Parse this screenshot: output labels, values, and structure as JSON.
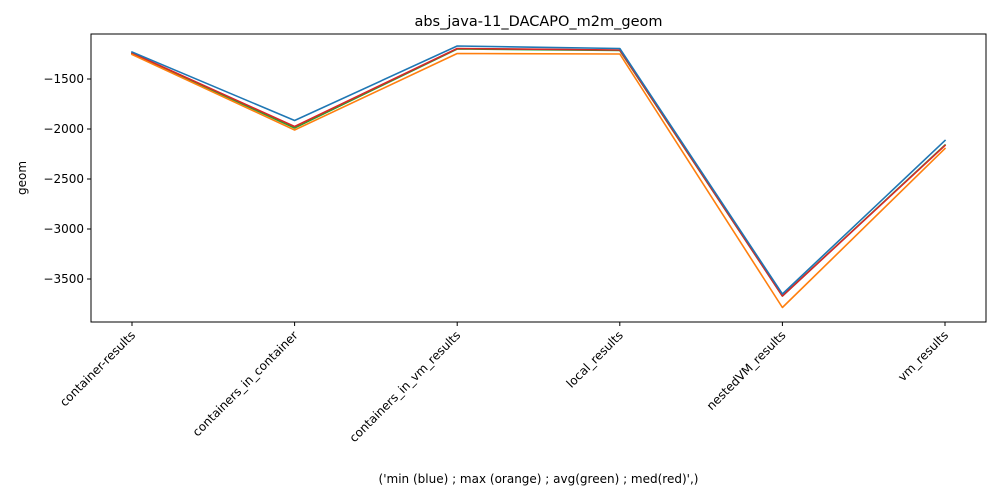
{
  "chart_data": {
    "type": "line",
    "title": "abs_java-11_DACAPO_m2m_geom",
    "xlabel": "('min (blue) ; max (orange) ; avg(green) ; med(red)',)",
    "ylabel": "geom",
    "categories": [
      "container-results",
      "containers_in_container",
      "containers_in_vm_results",
      "local_results",
      "nestedVM_results",
      "vm_results"
    ],
    "ylim": [
      -3930,
      -1050
    ],
    "yticks": [
      -1500,
      -2000,
      -2500,
      -3000,
      -3500
    ],
    "ytick_labels": [
      "−1500",
      "−2000",
      "−2500",
      "−3000",
      "−3500"
    ],
    "grid": false,
    "series": [
      {
        "values": [
          -1245,
          -1990,
          -1200,
          -1215,
          -3670,
          -2160
        ],
        "color": "#2ca02c"
      },
      {
        "values": [
          -1240,
          -1975,
          -1195,
          -1210,
          -3670,
          -2165
        ],
        "color": "#d62728"
      },
      {
        "values": [
          -1255,
          -2010,
          -1245,
          -1250,
          -3785,
          -2195
        ],
        "color": "#ff7f0e"
      },
      {
        "values": [
          -1230,
          -1915,
          -1170,
          -1195,
          -3650,
          -2115
        ],
        "color": "#1f77b4"
      }
    ]
  }
}
